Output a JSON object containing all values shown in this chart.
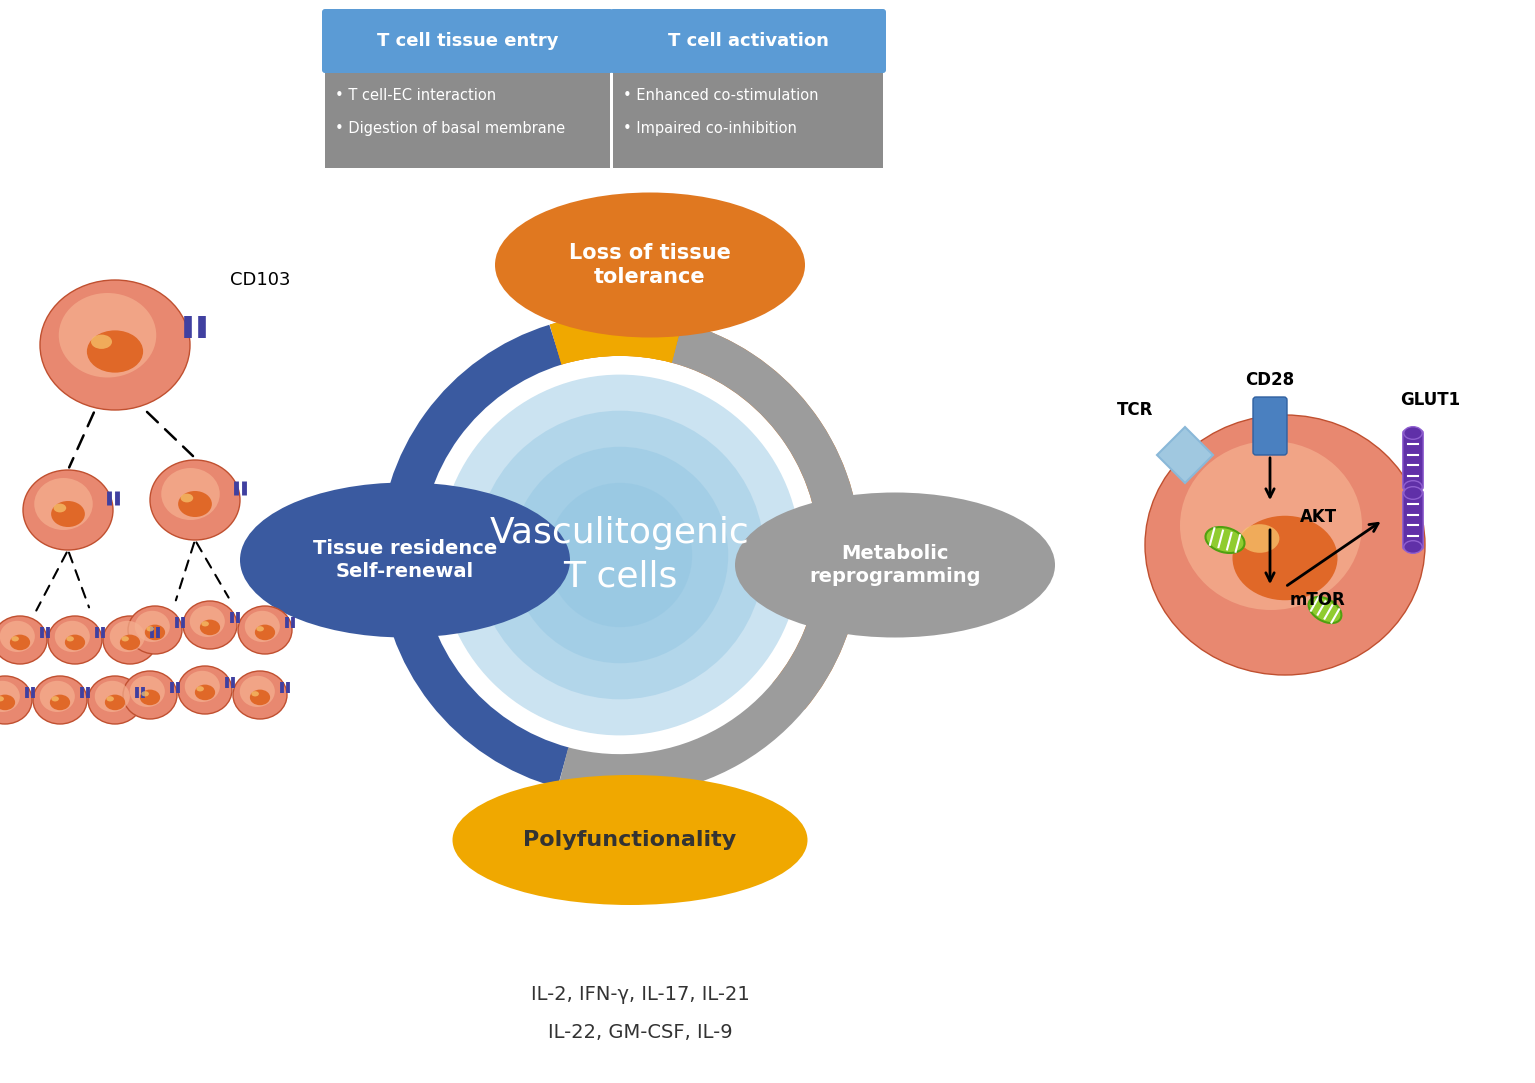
{
  "bg_color": "#ffffff",
  "title_box1": "T cell tissue entry",
  "title_box2": "T cell activation",
  "box1_color": "#5b9bd5",
  "box2_color": "#5b9bd5",
  "box_body_color": "#8c8c8c",
  "box1_items": [
    "• T cell-EC interaction",
    "• Digestion of basal membrane"
  ],
  "box2_items": [
    "• Enhanced co-stimulation",
    "• Impaired co-inhibition"
  ],
  "center_text": "Vasculitogenic\nT cells",
  "orange_ellipse_text": "Loss of tissue\ntolerance",
  "orange_color": "#e07820",
  "blue_ellipse_color": "#3a5aa0",
  "blue_ellipse_text": "Tissue residence\nSelf-renewal",
  "gray_ellipse_color": "#9c9c9c",
  "gray_ellipse_text": "Metabolic\nreprogramming",
  "gold_color": "#f0a800",
  "gold_ellipse_text": "Polyfunctionality",
  "ring_blue": "#3a5aa0",
  "ring_orange": "#e07820",
  "ring_gray": "#9c9c9c",
  "ring_gold": "#f0a800",
  "cytokines_line1": "IL-2, IFN-γ, IL-17, IL-21",
  "cytokines_line2": "IL-22, GM-CSF, IL-9",
  "cell_outer": "#e88870",
  "cell_inner": "#f5b090",
  "cell_nucleus": "#e06828",
  "cell_shine": "#f8c870",
  "tcr_color": "#a0c8e0",
  "cd28_color": "#4a80c0",
  "glut1_color": "#6030a8",
  "mito_green": "#90cc30",
  "mito_dark": "#50a010"
}
